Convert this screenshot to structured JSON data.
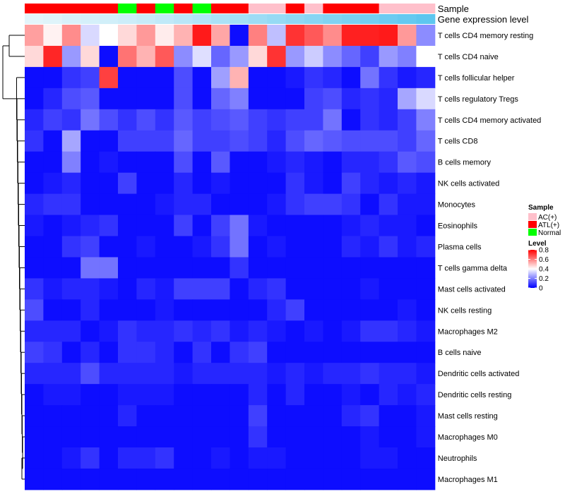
{
  "chart_data": {
    "type": "heatmap",
    "annotation_labels": [
      "Sample",
      "Gene expression level"
    ],
    "rows": [
      "T cells CD4 memory resting",
      "T cells CD4 naive",
      "T cells follicular helper",
      "T cells regulatory  Tregs",
      "T cells CD4 memory activated",
      "T cells CD8",
      "B cells memory",
      "NK cells activated",
      "Monocytes",
      "Eosinophils",
      "Plasma cells",
      "T cells gamma delta",
      "Mast cells activated",
      "NK cells resting",
      "Macrophages M2",
      "B cells naive",
      "Dendritic cells activated",
      "Dendritic cells resting",
      "Mast cells resting",
      "Macrophages M0",
      "Neutrophils",
      "Macrophages M1"
    ],
    "samples": [
      "ATL(+)",
      "ATL(+)",
      "ATL(+)",
      "ATL(+)",
      "ATL(+)",
      "Normal",
      "ATL(+)",
      "Normal",
      "ATL(+)",
      "Normal",
      "ATL(+)",
      "ATL(+)",
      "AC(+)",
      "AC(+)",
      "ATL(+)",
      "AC(+)",
      "ATL(+)",
      "ATL(+)",
      "ATL(+)",
      "AC(+)",
      "AC(+)",
      "AC(+)"
    ],
    "sample_colors": {
      "AC(+)": "#FFC0CB",
      "ATL(+)": "#FF0000",
      "Normal": "#00FF00"
    },
    "gene_expression_level": [
      0.02,
      0.04,
      0.08,
      0.1,
      0.12,
      0.15,
      0.18,
      0.22,
      0.26,
      0.3,
      0.34,
      0.38,
      0.42,
      0.46,
      0.5,
      0.54,
      0.58,
      0.62,
      0.66,
      0.7,
      0.74,
      0.78
    ],
    "gene_expression_colors": [
      "#E6F6FB",
      "#5BC5EF"
    ],
    "values": [
      [
        0.55,
        0.42,
        0.58,
        0.34,
        0.4,
        0.46,
        0.56,
        0.43,
        0.52,
        0.76,
        0.54,
        0.02,
        0.6,
        0.3,
        0.72,
        0.66,
        0.58,
        0.75,
        0.75,
        0.76,
        0.56,
        0.22
      ],
      [
        0.46,
        0.74,
        0.24,
        0.46,
        0.02,
        0.62,
        0.52,
        0.66,
        0.22,
        0.35,
        0.16,
        0.24,
        0.46,
        0.72,
        0.24,
        0.32,
        0.22,
        0.16,
        0.1,
        0.24,
        0.2,
        0.4
      ],
      [
        0.02,
        0.02,
        0.08,
        0.1,
        0.7,
        0.02,
        0.02,
        0.02,
        0.12,
        0.02,
        0.25,
        0.52,
        0.02,
        0.02,
        0.04,
        0.08,
        0.06,
        0.02,
        0.18,
        0.08,
        0.04,
        0.06
      ],
      [
        0.02,
        0.06,
        0.12,
        0.14,
        0.02,
        0.02,
        0.02,
        0.02,
        0.12,
        0.02,
        0.16,
        0.2,
        0.02,
        0.02,
        0.02,
        0.1,
        0.12,
        0.06,
        0.08,
        0.06,
        0.26,
        0.34
      ],
      [
        0.06,
        0.1,
        0.08,
        0.18,
        0.12,
        0.08,
        0.12,
        0.08,
        0.14,
        0.1,
        0.12,
        0.14,
        0.1,
        0.08,
        0.1,
        0.1,
        0.18,
        0.02,
        0.08,
        0.06,
        0.1,
        0.2
      ],
      [
        0.08,
        0.02,
        0.26,
        0.02,
        0.02,
        0.1,
        0.1,
        0.1,
        0.16,
        0.1,
        0.1,
        0.12,
        0.1,
        0.06,
        0.12,
        0.16,
        0.14,
        0.12,
        0.12,
        0.12,
        0.1,
        0.16
      ],
      [
        0.02,
        0.02,
        0.2,
        0.02,
        0.04,
        0.02,
        0.02,
        0.02,
        0.12,
        0.02,
        0.14,
        0.02,
        0.02,
        0.04,
        0.06,
        0.04,
        0.02,
        0.06,
        0.06,
        0.08,
        0.14,
        0.12
      ],
      [
        0.02,
        0.04,
        0.06,
        0.02,
        0.02,
        0.1,
        0.02,
        0.02,
        0.06,
        0.02,
        0.04,
        0.02,
        0.02,
        0.02,
        0.08,
        0.04,
        0.02,
        0.1,
        0.06,
        0.04,
        0.06,
        0.04
      ],
      [
        0.06,
        0.08,
        0.08,
        0.02,
        0.02,
        0.02,
        0.02,
        0.04,
        0.06,
        0.06,
        0.02,
        0.02,
        0.02,
        0.04,
        0.08,
        0.1,
        0.1,
        0.08,
        0.02,
        0.08,
        0.04,
        0.04
      ],
      [
        0.04,
        0.02,
        0.04,
        0.06,
        0.08,
        0.02,
        0.02,
        0.02,
        0.1,
        0.02,
        0.1,
        0.18,
        0.04,
        0.02,
        0.02,
        0.02,
        0.02,
        0.04,
        0.06,
        0.04,
        0.04,
        0.02
      ],
      [
        0.02,
        0.02,
        0.08,
        0.1,
        0.02,
        0.02,
        0.04,
        0.02,
        0.02,
        0.04,
        0.08,
        0.18,
        0.02,
        0.04,
        0.02,
        0.02,
        0.02,
        0.06,
        0.04,
        0.08,
        0.04,
        0.06
      ],
      [
        0.02,
        0.02,
        0.02,
        0.18,
        0.18,
        0.02,
        0.02,
        0.02,
        0.02,
        0.02,
        0.02,
        0.08,
        0.02,
        0.02,
        0.02,
        0.02,
        0.02,
        0.02,
        0.02,
        0.02,
        0.02,
        0.02
      ],
      [
        0.08,
        0.04,
        0.06,
        0.06,
        0.04,
        0.02,
        0.06,
        0.04,
        0.1,
        0.1,
        0.1,
        0.02,
        0.06,
        0.08,
        0.02,
        0.02,
        0.02,
        0.02,
        0.04,
        0.02,
        0.02,
        0.02
      ],
      [
        0.12,
        0.02,
        0.02,
        0.06,
        0.02,
        0.02,
        0.02,
        0.04,
        0.02,
        0.02,
        0.02,
        0.02,
        0.02,
        0.06,
        0.1,
        0.02,
        0.02,
        0.02,
        0.02,
        0.02,
        0.04,
        0.02
      ],
      [
        0.06,
        0.06,
        0.06,
        0.02,
        0.04,
        0.08,
        0.06,
        0.06,
        0.08,
        0.06,
        0.08,
        0.04,
        0.06,
        0.04,
        0.02,
        0.04,
        0.02,
        0.04,
        0.08,
        0.08,
        0.06,
        0.04
      ],
      [
        0.1,
        0.08,
        0.02,
        0.06,
        0.02,
        0.08,
        0.08,
        0.06,
        0.02,
        0.08,
        0.02,
        0.08,
        0.1,
        0.02,
        0.02,
        0.02,
        0.02,
        0.02,
        0.02,
        0.02,
        0.02,
        0.02
      ],
      [
        0.06,
        0.06,
        0.06,
        0.12,
        0.06,
        0.06,
        0.06,
        0.06,
        0.04,
        0.06,
        0.06,
        0.06,
        0.06,
        0.04,
        0.06,
        0.04,
        0.06,
        0.06,
        0.08,
        0.06,
        0.06,
        0.04
      ],
      [
        0.02,
        0.04,
        0.04,
        0.02,
        0.02,
        0.04,
        0.04,
        0.04,
        0.02,
        0.02,
        0.02,
        0.02,
        0.06,
        0.02,
        0.06,
        0.02,
        0.02,
        0.04,
        0.02,
        0.06,
        0.04,
        0.06
      ],
      [
        0.02,
        0.02,
        0.02,
        0.02,
        0.02,
        0.06,
        0.02,
        0.02,
        0.02,
        0.02,
        0.02,
        0.02,
        0.1,
        0.02,
        0.02,
        0.02,
        0.02,
        0.06,
        0.08,
        0.02,
        0.02,
        0.04
      ],
      [
        0.02,
        0.02,
        0.02,
        0.02,
        0.02,
        0.02,
        0.02,
        0.02,
        0.02,
        0.02,
        0.02,
        0.02,
        0.08,
        0.02,
        0.02,
        0.02,
        0.02,
        0.02,
        0.04,
        0.02,
        0.02,
        0.04
      ],
      [
        0.02,
        0.02,
        0.04,
        0.08,
        0.02,
        0.06,
        0.06,
        0.08,
        0.02,
        0.02,
        0.04,
        0.02,
        0.04,
        0.04,
        0.02,
        0.02,
        0.02,
        0.02,
        0.04,
        0.04,
        0.02,
        0.02
      ],
      [
        0.02,
        0.02,
        0.02,
        0.02,
        0.02,
        0.02,
        0.02,
        0.02,
        0.02,
        0.02,
        0.02,
        0.02,
        0.02,
        0.02,
        0.02,
        0.02,
        0.02,
        0.02,
        0.02,
        0.02,
        0.02,
        0.02
      ]
    ],
    "color_scale": {
      "low": "#0000FF",
      "mid": "#FFFFFF",
      "high": "#FF0000",
      "mid_value": 0.4
    },
    "legend": {
      "sample_title": "Sample",
      "sample_entries": [
        "AC(+)",
        "ATL(+)",
        "Normal"
      ],
      "level_title": "Level",
      "level_ticks": [
        0.8,
        0.6,
        0.4,
        0.2,
        0
      ],
      "level_tick_labels": [
        "0.8",
        "0.6",
        "0.4",
        "0.2",
        "0"
      ],
      "position": "right"
    }
  }
}
